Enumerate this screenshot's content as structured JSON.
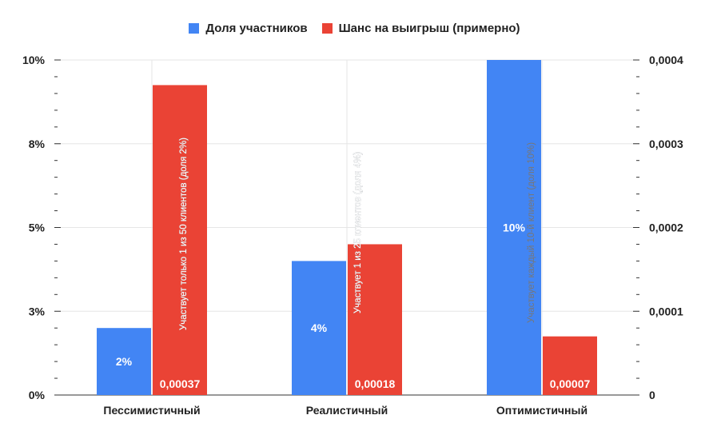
{
  "chart_data": {
    "type": "bar",
    "categories": [
      "Пессимистичный",
      "Реалистичный",
      "Оптимистичный"
    ],
    "series": [
      {
        "name": "Доля участников",
        "color": "#4285f4",
        "axis": "left",
        "values": [
          0.02,
          0.04,
          0.1
        ],
        "labels": [
          "2%",
          "4%",
          "10%"
        ]
      },
      {
        "name": "Шанс на выигрыш (примерно)",
        "color": "#ea4335",
        "axis": "right",
        "values": [
          0.00037,
          0.00018,
          7e-05
        ],
        "labels": [
          "0,00037",
          "0,00018",
          "0,00007"
        ]
      }
    ],
    "y_left": {
      "min": 0,
      "max": 0.1,
      "ticks": [
        0,
        0.025,
        0.05,
        0.075,
        0.1
      ],
      "tick_labels": [
        "0%",
        "3%",
        "5%",
        "8%",
        "10%"
      ]
    },
    "y_right": {
      "min": 0,
      "max": 0.0004,
      "ticks": [
        0,
        0.0001,
        0.0002,
        0.0003,
        0.0004
      ],
      "tick_labels": [
        "0",
        "0,0001",
        "0,0002",
        "0,0003",
        "0,0004"
      ]
    },
    "annotations": [
      "Участвует только 1 из 50 клиентов (доля 2%)",
      "Участвует 1 из 25 клиентов (доля 4%)",
      "Участвует каждый 10-й клиент (доля 10%)"
    ],
    "legend_position": "top",
    "grid": true
  }
}
